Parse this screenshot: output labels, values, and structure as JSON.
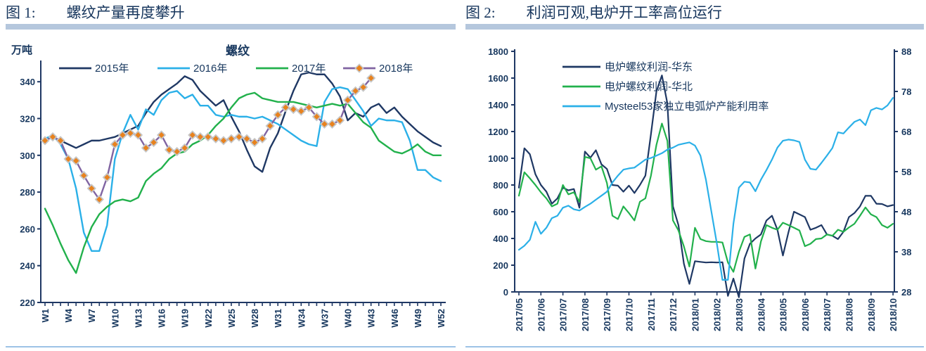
{
  "figures": [
    {
      "label": "图 1:",
      "title": "螺纹产量再度攀升"
    },
    {
      "label": "图 2:",
      "title": "利润可观,电炉开工率高位运行"
    }
  ],
  "colors": {
    "axis": "#1F3864",
    "text": "#17375E",
    "title_bar": "#B5C7DD",
    "bottom_rule": "#9DC3E6",
    "navy": "#1F3864",
    "cyan": "#2BB0E8",
    "green": "#22B14C",
    "purple": "#8064A2",
    "marker_orange": "#E8821E",
    "marker_stroke": "#C6C6C6"
  },
  "chart_data": [
    {
      "type": "line",
      "title": "螺纹",
      "unit_label": "万吨",
      "x_labels": [
        "W1",
        "W4",
        "W7",
        "W10",
        "W13",
        "W16",
        "W19",
        "W22",
        "W25",
        "W28",
        "W31",
        "W34",
        "W37",
        "W40",
        "W43",
        "W46",
        "W49",
        "W52"
      ],
      "x_count": 52,
      "x_label_every": 3,
      "ylim": [
        220,
        345
      ],
      "y_ticks": [
        220,
        240,
        260,
        280,
        300,
        320,
        340
      ],
      "grid": false,
      "legend_position": "top",
      "series": [
        {
          "name": "2015年",
          "color": "#1F3864",
          "values": [
            309,
            310,
            308,
            306,
            304,
            306,
            308,
            308,
            309,
            310,
            312,
            314,
            316,
            323,
            329,
            333,
            336,
            339,
            343,
            341,
            335,
            331,
            327,
            330,
            321,
            313,
            303,
            294,
            291,
            304,
            312,
            324,
            335,
            344,
            345,
            344,
            344,
            339,
            332,
            319,
            323,
            321,
            326,
            328,
            323,
            326,
            321,
            317,
            313,
            310,
            307,
            305
          ]
        },
        {
          "name": "2016年",
          "color": "#2BB0E8",
          "values": [
            309,
            311,
            306,
            298,
            282,
            258,
            248,
            248,
            262,
            298,
            312,
            322,
            314,
            325,
            322,
            330,
            334,
            335,
            331,
            333,
            327,
            327,
            322,
            321,
            322,
            321,
            321,
            320,
            321,
            319,
            317,
            314,
            311,
            308,
            306,
            305,
            329,
            336,
            337,
            336,
            330,
            324,
            316,
            320,
            319,
            319,
            318,
            308,
            292,
            292,
            288,
            286
          ]
        },
        {
          "name": "2017年",
          "color": "#22B14C",
          "values": [
            271,
            262,
            252,
            243,
            236,
            250,
            261,
            268,
            272,
            275,
            276,
            275,
            277,
            286,
            290,
            293,
            298,
            301,
            302,
            306,
            308,
            311,
            316,
            320,
            326,
            331,
            333,
            334,
            331,
            330,
            329,
            329,
            329,
            328,
            327,
            326,
            327,
            328,
            327,
            328,
            323,
            318,
            315,
            308,
            305,
            302,
            301,
            303,
            306,
            302,
            300,
            300
          ]
        },
        {
          "name": "2018年",
          "color": "#8064A2",
          "marker": "diamond",
          "marker_color": "#E8821E",
          "values": [
            308,
            310,
            308,
            298,
            297,
            289,
            282,
            276,
            288,
            306,
            311,
            312,
            311,
            304,
            307,
            311,
            303,
            302,
            304,
            311,
            310,
            310,
            309,
            308,
            309,
            310,
            309,
            307,
            309,
            316,
            322,
            326,
            325,
            324,
            326,
            321,
            317,
            317,
            319,
            330,
            335,
            337,
            342
          ]
        }
      ]
    },
    {
      "type": "line",
      "title": "",
      "x_labels": [
        "2017/05",
        "2017/06",
        "2017/07",
        "2017/08",
        "2017/09",
        "2017/10",
        "2017/11",
        "2017/12",
        "2018/01",
        "2018/02",
        "2018/03",
        "2018/04",
        "2018/05",
        "2018/06",
        "2018/07",
        "2018/08",
        "2018/09",
        "2018/10"
      ],
      "left_ylim": [
        0,
        1800
      ],
      "left_y_ticks": [
        0,
        200,
        400,
        600,
        800,
        1000,
        1200,
        1400,
        1600,
        1800
      ],
      "right_ylim": [
        28,
        88
      ],
      "right_y_ticks": [
        28,
        38,
        48,
        58,
        68,
        78,
        88
      ],
      "grid": false,
      "legend_position": "top-left-column",
      "series": [
        {
          "name": "电炉螺纹利润-华东",
          "color": "#1F3864",
          "axis": "left",
          "values": [
            780,
            1075,
            1030,
            880,
            800,
            750,
            660,
            700,
            780,
            760,
            770,
            630,
            1050,
            1005,
            1060,
            955,
            920,
            800,
            795,
            750,
            795,
            740,
            800,
            870,
            1180,
            1500,
            1620,
            1410,
            640,
            500,
            210,
            60,
            230,
            225,
            220,
            222,
            220,
            222,
            -30,
            100,
            -40,
            250,
            360,
            400,
            430,
            535,
            570,
            465,
            272,
            447,
            600,
            580,
            560,
            465,
            480,
            500,
            430,
            420,
            395,
            450,
            560,
            590,
            640,
            719,
            719,
            660,
            658,
            640,
            650
          ]
        },
        {
          "name": "电炉螺纹利润-华北",
          "color": "#22B14C",
          "axis": "left",
          "values": [
            720,
            895,
            850,
            800,
            745,
            700,
            640,
            660,
            800,
            730,
            745,
            675,
            1010,
            1000,
            915,
            940,
            815,
            570,
            545,
            640,
            590,
            535,
            675,
            700,
            870,
            1100,
            1260,
            1130,
            535,
            460,
            340,
            190,
            480,
            395,
            380,
            375,
            375,
            370,
            220,
            150,
            300,
            412,
            430,
            175,
            377,
            500,
            480,
            465,
            518,
            500,
            480,
            460,
            342,
            360,
            395,
            400,
            430,
            420,
            465,
            450,
            482,
            510,
            570,
            632,
            580,
            560,
            500,
            480,
            510
          ]
        },
        {
          "name": "Mysteel53家独立电弧炉产能利用率",
          "color": "#2BB0E8",
          "axis": "right",
          "values": [
            38.5,
            39.5,
            41,
            45.5,
            42.5,
            44,
            46.4,
            47,
            49,
            49.5,
            48.6,
            48.3,
            49.2,
            50,
            51,
            52,
            53,
            55.3,
            57,
            58.5,
            58.8,
            59,
            60,
            61,
            61.4,
            62,
            62.6,
            63.5,
            64,
            64.7,
            65,
            65.3,
            64.5,
            62,
            56,
            48,
            40,
            31,
            31,
            45,
            54,
            55.5,
            55.3,
            53.1,
            56,
            58.4,
            61,
            64,
            65.7,
            66,
            65.8,
            65.4,
            61,
            58.7,
            58.5,
            60.2,
            62,
            63.9,
            67.8,
            67.5,
            69,
            70.4,
            71,
            69.6,
            73.3,
            73.9,
            73.5,
            74.5,
            76.4
          ]
        }
      ]
    }
  ]
}
